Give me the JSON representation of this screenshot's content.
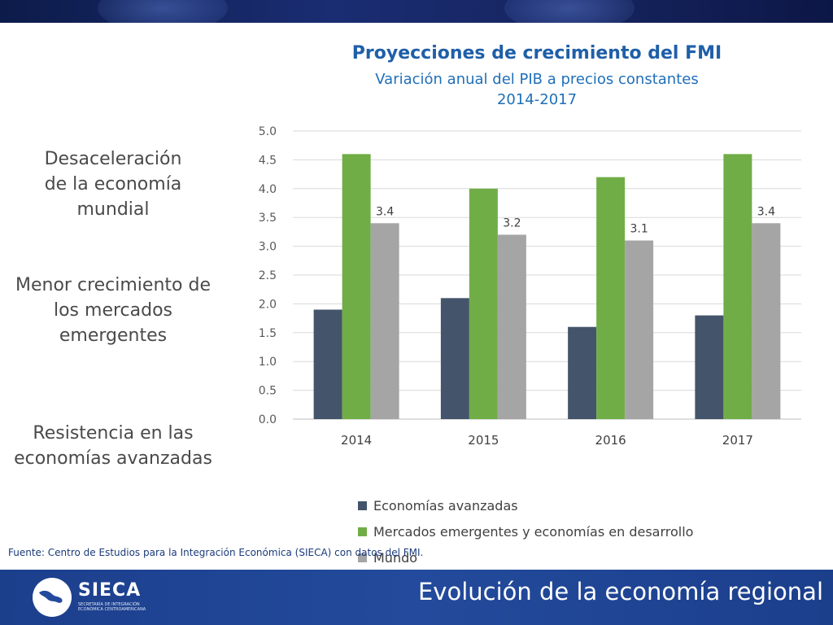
{
  "side_notes": [
    "Desaceleración de la economía mundial",
    "Menor crecimiento de los mercados emergentes",
    "Resistencia en las economías avanzadas"
  ],
  "side_note_lines": [
    [
      "Desaceleración",
      "de la economía",
      "mundial"
    ],
    [
      "Menor crecimiento de",
      "los mercados",
      "emergentes"
    ],
    [
      "Resistencia en las",
      "economías avanzadas"
    ]
  ],
  "source": "Fuente: Centro de Estudios para la Integración Económica (SIECA) con datos del FMI.",
  "footer": {
    "title": "Evolución de la economía regional",
    "logo_text": "SIECA",
    "logo_subtitle": "SECRETARÍA DE INTEGRACIÓN ECONÓMICA CENTROAMERICANA"
  },
  "colors": {
    "banner": "#16245f",
    "footer": "#234a9c",
    "title": "#1f5fa8",
    "advanced": "#44546a",
    "emerging": "#70ad47",
    "world": "#a5a5a5"
  },
  "chart_data": {
    "type": "bar",
    "title": "Proyecciones de crecimiento del FMI",
    "subtitle": "Variación anual del PIB a precios constantes",
    "subtitle2": "2014-2017",
    "categories": [
      "2014",
      "2015",
      "2016",
      "2017"
    ],
    "series": [
      {
        "name": "Economías avanzadas",
        "values": [
          1.9,
          2.1,
          1.6,
          1.8
        ],
        "color": "#44546a",
        "labels": [
          "",
          "",
          "",
          ""
        ]
      },
      {
        "name": "Mercados emergentes y economías en desarrollo",
        "values": [
          4.6,
          4.0,
          4.2,
          4.6
        ],
        "color": "#70ad47",
        "labels": [
          "",
          "",
          "",
          ""
        ]
      },
      {
        "name": "Mundo",
        "values": [
          3.4,
          3.2,
          3.1,
          3.4
        ],
        "color": "#a5a5a5",
        "labels": [
          "3.4",
          "3.2",
          "3.1",
          "3.4"
        ]
      }
    ],
    "ylim": [
      0,
      5.0
    ],
    "yticks": [
      "0.0",
      "0.5",
      "1.0",
      "1.5",
      "2.0",
      "2.5",
      "3.0",
      "3.5",
      "4.0",
      "4.5",
      "5.0"
    ],
    "grid": true,
    "legend": "bottom"
  }
}
